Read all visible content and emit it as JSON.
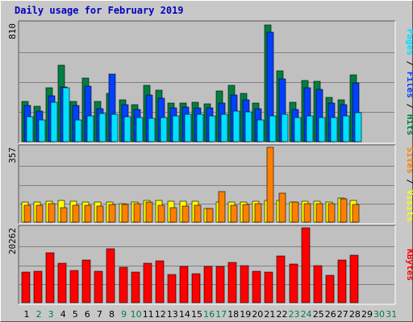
{
  "chart_data": {
    "type": "bar",
    "title": "Daily usage for February 2019",
    "categories": [
      "1",
      "2",
      "3",
      "4",
      "5",
      "6",
      "7",
      "8",
      "9",
      "10",
      "11",
      "12",
      "13",
      "14",
      "15",
      "16",
      "17",
      "18",
      "19",
      "20",
      "21",
      "22",
      "23",
      "24",
      "25",
      "26",
      "27",
      "28",
      "29",
      "30",
      "31"
    ],
    "weekend_days": [
      2,
      3,
      9,
      10,
      16,
      17,
      23,
      24,
      30,
      31
    ],
    "colors": {
      "hits": "#008040",
      "files": "#0040ff",
      "pages": "#00e0ff",
      "visits": "#ffff00",
      "sites": "#ff8000",
      "kbytes": "#ff0000",
      "weekday_label": "#000000",
      "weekend_label": "#008040"
    },
    "panels": [
      {
        "ymax": 810,
        "ylim": [
          0,
          810
        ],
        "ytick_label": "810",
        "right_label": [
          {
            "text": "Pages",
            "color": "#00e0ff"
          },
          {
            "text": " / ",
            "color": "#000000"
          },
          {
            "text": "Files",
            "color": "#0040ff"
          },
          {
            "text": " / ",
            "color": "#000000"
          },
          {
            "text": "Hits",
            "color": "#008040"
          }
        ],
        "series": [
          {
            "name": "Hits",
            "color": "#008040",
            "values": [
              275,
              240,
              365,
              520,
              275,
              430,
              275,
              330,
              285,
              250,
              385,
              350,
              260,
              260,
              270,
              255,
              345,
              385,
              330,
              265,
              795,
              480,
              270,
              415,
              410,
              300,
              285,
              455,
              0,
              0,
              0
            ]
          },
          {
            "name": "Files",
            "color": "#0040ff",
            "values": [
              245,
              210,
              310,
              370,
              245,
              375,
              225,
              460,
              250,
              220,
              315,
              295,
              230,
              235,
              230,
              230,
              265,
              315,
              285,
              225,
              745,
              425,
              220,
              365,
              355,
              260,
              250,
              400,
              0,
              0,
              0
            ]
          },
          {
            "name": "Pages",
            "color": "#00e0ff",
            "values": [
              170,
              150,
              270,
              365,
              150,
              175,
              190,
              185,
              170,
              165,
              160,
              165,
              175,
              185,
              185,
              175,
              185,
              210,
              200,
              150,
              175,
              185,
              165,
              175,
              165,
              165,
              175,
              195,
              0,
              0,
              0
            ]
          }
        ]
      },
      {
        "ymax": 357,
        "ylim": [
          0,
          357
        ],
        "ytick_label": "357",
        "right_label": [
          {
            "text": "Sites",
            "color": "#ff8000"
          },
          {
            "text": " / ",
            "color": "#000000"
          },
          {
            "text": "Visits",
            "color": "#ffff00"
          }
        ],
        "series": [
          {
            "name": "Visits",
            "color": "#ffff00",
            "values": [
              95,
              95,
              100,
              105,
              100,
              95,
              95,
              95,
              90,
              95,
              105,
              105,
              100,
              100,
              100,
              65,
              95,
              95,
              95,
              100,
              105,
              105,
              95,
              100,
              100,
              95,
              115,
              105,
              0,
              0,
              0
            ]
          },
          {
            "name": "Sites",
            "color": "#ff8000",
            "values": [
              80,
              80,
              90,
              70,
              80,
              80,
              75,
              85,
              85,
              90,
              95,
              80,
              70,
              75,
              80,
              65,
              145,
              80,
              85,
              90,
              357,
              140,
              95,
              90,
              90,
              90,
              110,
              85,
              0,
              0,
              0
            ]
          }
        ]
      },
      {
        "ymax": 20262,
        "ylim": [
          0,
          20262
        ],
        "ytick_label": "20262",
        "right_label": [
          {
            "text": "KBytes",
            "color": "#ff0000"
          }
        ],
        "series": [
          {
            "name": "KBytes",
            "color": "#ff0000",
            "values": [
              8200,
              8500,
              13400,
              10700,
              8700,
              11600,
              8500,
              14600,
              9600,
              8200,
              10700,
              11400,
              7700,
              9800,
              7900,
              9800,
              9800,
              10800,
              10000,
              8400,
              8200,
              12600,
              10400,
              20262,
              10100,
              7300,
              11500,
              12900,
              0,
              0,
              0
            ]
          }
        ]
      }
    ]
  }
}
